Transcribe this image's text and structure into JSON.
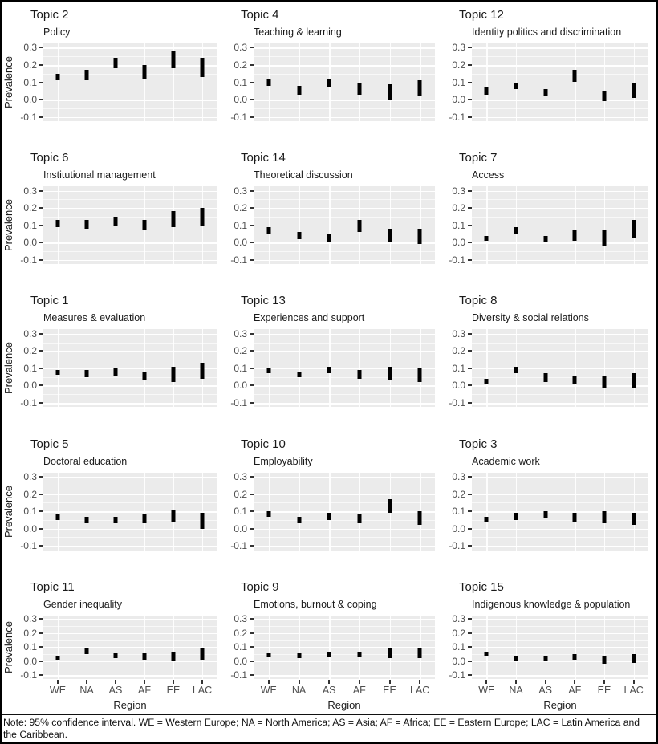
{
  "figure": {
    "ylabel": "Prevalence",
    "xlabel": "Region",
    "footnote": "Note: 95% confidence interval. WE = Western Europe; NA = North America; AS = Asia; AF = Africa; EE = Eastern Europe; LAC = Latin America and the Caribbean.",
    "colors": {
      "panel_bg": "#EBEBEB",
      "gridline": "#FFFFFF",
      "interval_bar": "#000000",
      "tick_text": "#4D4D4D",
      "title_text": "#1A1A1A",
      "frame_border": "#000000"
    }
  },
  "chart_data": {
    "type": "scatter",
    "subtype": "faceted-confidence-interval-ranges",
    "categories": [
      "WE",
      "NA",
      "AS",
      "AF",
      "EE",
      "LAC"
    ],
    "xlabel": "Region",
    "ylabel": "Prevalence",
    "ylim": [
      -0.1,
      0.3
    ],
    "ytick_values": [
      0.3,
      0.2,
      0.1,
      0.0,
      -0.1
    ],
    "ytick_labels": [
      "0.3",
      "0.2",
      "0.1",
      "0.0",
      "-0.1"
    ],
    "grid": "on",
    "legend": "none",
    "note": "Each panel shows 95% confidence interval of topic prevalence per region; ranges are [low, high].",
    "panels": [
      {
        "title": "Topic 2",
        "subtitle": "Policy",
        "ranges": [
          [
            0.11,
            0.15
          ],
          [
            0.11,
            0.17
          ],
          [
            0.18,
            0.24
          ],
          [
            0.12,
            0.2
          ],
          [
            0.18,
            0.28
          ],
          [
            0.13,
            0.24
          ]
        ]
      },
      {
        "title": "Topic 4",
        "subtitle": "Teaching & learning",
        "ranges": [
          [
            0.08,
            0.12
          ],
          [
            0.03,
            0.08
          ],
          [
            0.07,
            0.12
          ],
          [
            0.03,
            0.1
          ],
          [
            0.0,
            0.09
          ],
          [
            0.02,
            0.11
          ]
        ]
      },
      {
        "title": "Topic 12",
        "subtitle": "Identity politics and discrimination",
        "ranges": [
          [
            0.03,
            0.07
          ],
          [
            0.06,
            0.1
          ],
          [
            0.02,
            0.06
          ],
          [
            0.1,
            0.17
          ],
          [
            -0.01,
            0.05
          ],
          [
            0.01,
            0.1
          ]
        ]
      },
      {
        "title": "Topic 6",
        "subtitle": "Institutional management",
        "ranges": [
          [
            0.09,
            0.13
          ],
          [
            0.08,
            0.13
          ],
          [
            0.1,
            0.15
          ],
          [
            0.07,
            0.13
          ],
          [
            0.09,
            0.18
          ],
          [
            0.1,
            0.2
          ]
        ]
      },
      {
        "title": "Topic 14",
        "subtitle": "Theoretical discussion",
        "ranges": [
          [
            0.05,
            0.09
          ],
          [
            0.02,
            0.06
          ],
          [
            0.0,
            0.05
          ],
          [
            0.06,
            0.13
          ],
          [
            0.0,
            0.08
          ],
          [
            -0.01,
            0.08
          ]
        ]
      },
      {
        "title": "Topic 7",
        "subtitle": "Access",
        "ranges": [
          [
            0.01,
            0.04
          ],
          [
            0.05,
            0.09
          ],
          [
            0.0,
            0.04
          ],
          [
            0.01,
            0.07
          ],
          [
            -0.02,
            0.07
          ],
          [
            0.03,
            0.13
          ]
        ]
      },
      {
        "title": "Topic 1",
        "subtitle": "Measures & evaluation",
        "ranges": [
          [
            0.06,
            0.09
          ],
          [
            0.05,
            0.09
          ],
          [
            0.06,
            0.1
          ],
          [
            0.03,
            0.08
          ],
          [
            0.02,
            0.11
          ],
          [
            0.04,
            0.13
          ]
        ]
      },
      {
        "title": "Topic 13",
        "subtitle": "Experiences and support",
        "ranges": [
          [
            0.07,
            0.1
          ],
          [
            0.05,
            0.08
          ],
          [
            0.07,
            0.11
          ],
          [
            0.04,
            0.09
          ],
          [
            0.03,
            0.11
          ],
          [
            0.02,
            0.1
          ]
        ]
      },
      {
        "title": "Topic 8",
        "subtitle": "Diversity & social relations",
        "ranges": [
          [
            0.01,
            0.04
          ],
          [
            0.07,
            0.11
          ],
          [
            0.02,
            0.07
          ],
          [
            0.01,
            0.06
          ],
          [
            -0.01,
            0.06
          ],
          [
            -0.01,
            0.07
          ]
        ]
      },
      {
        "title": "Topic 5",
        "subtitle": "Doctoral education",
        "ranges": [
          [
            0.05,
            0.08
          ],
          [
            0.03,
            0.07
          ],
          [
            0.03,
            0.07
          ],
          [
            0.03,
            0.08
          ],
          [
            0.04,
            0.11
          ],
          [
            0.0,
            0.09
          ]
        ]
      },
      {
        "title": "Topic 10",
        "subtitle": "Employability",
        "ranges": [
          [
            0.07,
            0.1
          ],
          [
            0.03,
            0.07
          ],
          [
            0.05,
            0.09
          ],
          [
            0.03,
            0.08
          ],
          [
            0.09,
            0.17
          ],
          [
            0.02,
            0.1
          ]
        ]
      },
      {
        "title": "Topic 3",
        "subtitle": "Academic work",
        "ranges": [
          [
            0.04,
            0.07
          ],
          [
            0.05,
            0.09
          ],
          [
            0.06,
            0.1
          ],
          [
            0.04,
            0.09
          ],
          [
            0.03,
            0.1
          ],
          [
            0.02,
            0.09
          ]
        ]
      },
      {
        "title": "Topic 11",
        "subtitle": "Gender inequality",
        "ranges": [
          [
            0.01,
            0.04
          ],
          [
            0.05,
            0.09
          ],
          [
            0.02,
            0.06
          ],
          [
            0.01,
            0.06
          ],
          [
            0.0,
            0.07
          ],
          [
            0.01,
            0.09
          ]
        ]
      },
      {
        "title": "Topic 9",
        "subtitle": "Emotions, burnout & coping",
        "ranges": [
          [
            0.03,
            0.06
          ],
          [
            0.02,
            0.06
          ],
          [
            0.03,
            0.07
          ],
          [
            0.03,
            0.07
          ],
          [
            0.02,
            0.09
          ],
          [
            0.02,
            0.09
          ]
        ]
      },
      {
        "title": "Topic 15",
        "subtitle": "Indigenous knowledge & population",
        "ranges": [
          [
            0.04,
            0.07
          ],
          [
            0.0,
            0.04
          ],
          [
            0.0,
            0.04
          ],
          [
            0.01,
            0.05
          ],
          [
            -0.02,
            0.04
          ],
          [
            -0.01,
            0.05
          ]
        ]
      }
    ]
  }
}
